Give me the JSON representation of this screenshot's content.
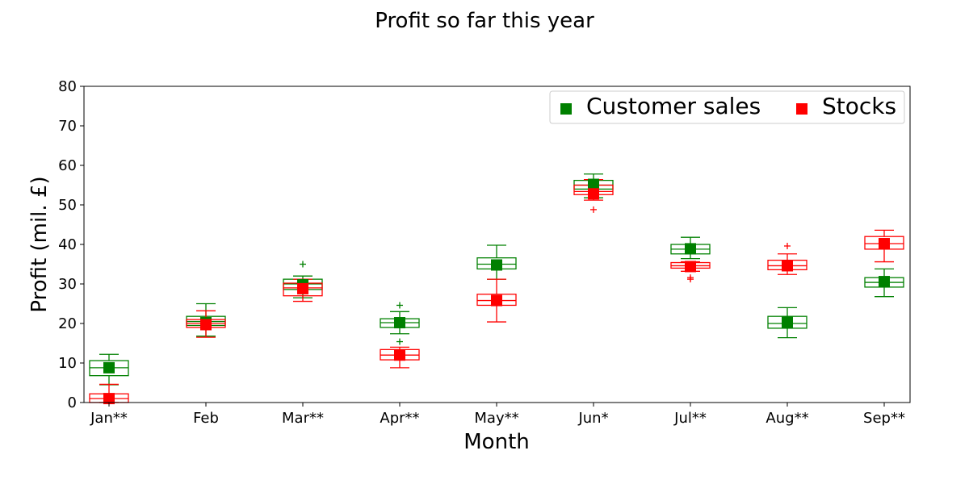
{
  "chart_data": {
    "type": "boxplot",
    "title": "Profit so far this year",
    "xlabel": "Month",
    "ylabel": "Profit (mil. £)",
    "ylim": [
      0,
      80
    ],
    "yticks": [
      0,
      10,
      20,
      30,
      40,
      50,
      60,
      70,
      80
    ],
    "categories": [
      "Jan**",
      "Feb",
      "Mar**",
      "Apr**",
      "May**",
      "Jun*",
      "Jul**",
      "Aug**",
      "Sep**"
    ],
    "grid": false,
    "legend": {
      "position": "top-right",
      "columns": 2
    },
    "series": [
      {
        "name": "Customer sales",
        "color": "#008000",
        "boxes": [
          {
            "whisker_low": 4.5,
            "q1": 6.8,
            "median": 8.8,
            "q3": 10.6,
            "whisker_high": 12.2,
            "mean": 8.8,
            "outliers": []
          },
          {
            "whisker_low": 16.8,
            "q1": 19.5,
            "median": 20.5,
            "q3": 21.8,
            "whisker_high": 25.0,
            "mean": 20.2,
            "outliers": []
          },
          {
            "whisker_low": 26.5,
            "q1": 28.6,
            "median": 30.0,
            "q3": 31.2,
            "whisker_high": 32.0,
            "mean": 29.8,
            "outliers": [
              35.0
            ]
          },
          {
            "whisker_low": 17.4,
            "q1": 19.0,
            "median": 20.2,
            "q3": 21.2,
            "whisker_high": 23.0,
            "mean": 20.2,
            "outliers": [
              24.6,
              15.4
            ]
          },
          {
            "whisker_low": 31.2,
            "q1": 33.8,
            "median": 35.0,
            "q3": 36.6,
            "whisker_high": 39.8,
            "mean": 34.8,
            "outliers": []
          },
          {
            "whisker_low": 51.8,
            "q1": 54.0,
            "median": 55.0,
            "q3": 56.2,
            "whisker_high": 57.8,
            "mean": 55.2,
            "outliers": []
          },
          {
            "whisker_low": 36.4,
            "q1": 37.6,
            "median": 38.8,
            "q3": 40.0,
            "whisker_high": 41.8,
            "mean": 38.9,
            "outliers": []
          },
          {
            "whisker_low": 16.4,
            "q1": 18.8,
            "median": 20.0,
            "q3": 21.8,
            "whisker_high": 24.0,
            "mean": 20.3,
            "outliers": []
          },
          {
            "whisker_low": 26.8,
            "q1": 29.2,
            "median": 30.4,
            "q3": 31.6,
            "whisker_high": 33.8,
            "mean": 30.6,
            "outliers": []
          }
        ]
      },
      {
        "name": "Stocks",
        "color": "#ff0000",
        "boxes": [
          {
            "whisker_low": 0,
            "q1": 0,
            "median": 1.0,
            "q3": 2.2,
            "whisker_high": 4.6,
            "mean": 1.0,
            "outliers": []
          },
          {
            "whisker_low": 16.5,
            "q1": 19.0,
            "median": 20.0,
            "q3": 21.0,
            "whisker_high": 23.2,
            "mean": 19.7,
            "outliers": []
          },
          {
            "whisker_low": 25.6,
            "q1": 27.0,
            "median": 29.0,
            "q3": 30.2,
            "whisker_high": 31.2,
            "mean": 28.8,
            "outliers": []
          },
          {
            "whisker_low": 8.8,
            "q1": 10.8,
            "median": 12.0,
            "q3": 13.4,
            "whisker_high": 14.0,
            "mean": 12.0,
            "outliers": []
          },
          {
            "whisker_low": 20.4,
            "q1": 24.6,
            "median": 25.8,
            "q3": 27.4,
            "whisker_high": 31.2,
            "mean": 25.8,
            "outliers": []
          },
          {
            "whisker_low": 51.2,
            "q1": 52.6,
            "median": 53.4,
            "q3": 55.0,
            "whisker_high": 56.4,
            "mean": 52.8,
            "outliers": [
              48.8
            ]
          },
          {
            "whisker_low": 33.2,
            "q1": 34.0,
            "median": 34.6,
            "q3": 35.4,
            "whisker_high": 35.6,
            "mean": 34.4,
            "outliers": [
              31.6,
              31.2
            ]
          },
          {
            "whisker_low": 32.4,
            "q1": 33.6,
            "median": 34.6,
            "q3": 36.0,
            "whisker_high": 37.6,
            "mean": 34.6,
            "outliers": [
              39.6
            ]
          },
          {
            "whisker_low": 35.6,
            "q1": 38.8,
            "median": 40.2,
            "q3": 42.0,
            "whisker_high": 43.6,
            "mean": 40.2,
            "outliers": []
          }
        ]
      }
    ]
  }
}
